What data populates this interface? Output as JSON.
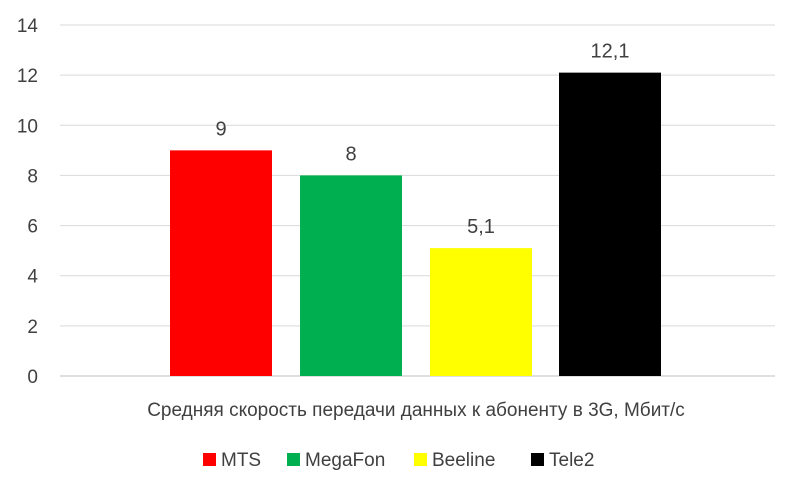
{
  "chart_data": {
    "type": "bar",
    "title": "",
    "xlabel": "Средняя скорость передачи данных к абоненту в 3G, Мбит/с",
    "ylabel": "",
    "ylim": [
      0,
      14
    ],
    "yticks": [
      0,
      2,
      4,
      6,
      8,
      10,
      12,
      14
    ],
    "grid": true,
    "legend_position": "bottom",
    "series": [
      {
        "name": "MTS",
        "value": 9,
        "label": "9",
        "color": "#ff0000"
      },
      {
        "name": "MegaFon",
        "value": 8,
        "label": "8",
        "color": "#00b050"
      },
      {
        "name": "Beeline",
        "value": 5.1,
        "label": "5,1",
        "color": "#ffff00"
      },
      {
        "name": "Tele2",
        "value": 12.1,
        "label": "12,1",
        "color": "#000000"
      }
    ]
  }
}
